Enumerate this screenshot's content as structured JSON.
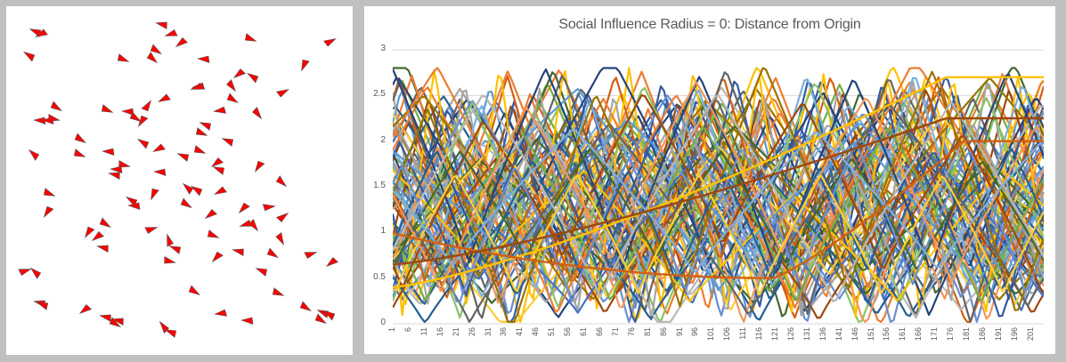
{
  "simulation": {
    "agent_color": "#ff0000",
    "agent_stroke": "#555555",
    "agent_count": 100,
    "agents": [
      [
        40,
        35,
        200
      ],
      [
        46,
        38,
        150
      ],
      [
        33,
        62,
        210
      ],
      [
        182,
        27,
        190
      ],
      [
        192,
        38,
        160
      ],
      [
        203,
        48,
        140
      ],
      [
        175,
        57,
        30
      ],
      [
        281,
        44,
        20
      ],
      [
        371,
        47,
        330
      ],
      [
        138,
        67,
        20
      ],
      [
        229,
        66,
        180
      ],
      [
        171,
        66,
        40
      ],
      [
        341,
        73,
        110
      ],
      [
        268,
        83,
        140
      ],
      [
        284,
        86,
        210
      ],
      [
        223,
        97,
        170
      ],
      [
        221,
        98,
        160
      ],
      [
        260,
        97,
        50
      ],
      [
        318,
        104,
        330
      ],
      [
        45,
        135,
        180
      ],
      [
        63,
        121,
        30
      ],
      [
        60,
        134,
        10
      ],
      [
        120,
        124,
        20
      ],
      [
        144,
        125,
        180
      ],
      [
        159,
        136,
        120
      ],
      [
        166,
        119,
        300
      ],
      [
        184,
        111,
        150
      ],
      [
        247,
        124,
        170
      ],
      [
        261,
        112,
        30
      ],
      [
        289,
        128,
        50
      ],
      [
        226,
        150,
        20
      ],
      [
        231,
        140,
        200
      ],
      [
        54,
        135,
        180
      ],
      [
        90,
        157,
        30
      ],
      [
        89,
        174,
        20
      ],
      [
        122,
        170,
        180
      ],
      [
        38,
        173,
        220
      ],
      [
        161,
        160,
        210
      ],
      [
        178,
        167,
        150
      ],
      [
        206,
        175,
        200
      ],
      [
        131,
        190,
        180
      ],
      [
        139,
        186,
        10
      ],
      [
        129,
        196,
        190
      ],
      [
        180,
        193,
        180
      ],
      [
        224,
        170,
        20
      ],
      [
        243,
        183,
        140
      ],
      [
        246,
        190,
        200
      ],
      [
        290,
        187,
        120
      ],
      [
        256,
        158,
        200
      ],
      [
        316,
        205,
        40
      ],
      [
        55,
        218,
        20
      ],
      [
        53,
        238,
        120
      ],
      [
        99,
        261,
        120
      ],
      [
        109,
        266,
        140
      ],
      [
        118,
        252,
        30
      ],
      [
        148,
        225,
        210
      ],
      [
        151,
        231,
        180
      ],
      [
        116,
        278,
        190
      ],
      [
        172,
        218,
        110
      ],
      [
        211,
        211,
        220
      ],
      [
        221,
        213,
        210
      ],
      [
        247,
        215,
        150
      ],
      [
        273,
        234,
        130
      ],
      [
        302,
        233,
        350
      ],
      [
        318,
        244,
        320
      ],
      [
        170,
        258,
        340
      ],
      [
        190,
        270,
        250
      ],
      [
        197,
        279,
        200
      ],
      [
        209,
        230,
        30
      ],
      [
        236,
        241,
        140
      ],
      [
        239,
        265,
        20
      ],
      [
        276,
        252,
        160
      ],
      [
        285,
        254,
        50
      ],
      [
        315,
        269,
        60
      ],
      [
        349,
        286,
        340
      ],
      [
        372,
        295,
        140
      ],
      [
        28,
        305,
        340
      ],
      [
        40,
        306,
        220
      ],
      [
        190,
        294,
        10
      ],
      [
        243,
        289,
        130
      ],
      [
        268,
        282,
        190
      ],
      [
        306,
        286,
        30
      ],
      [
        294,
        304,
        200
      ],
      [
        312,
        330,
        20
      ],
      [
        218,
        328,
        30
      ],
      [
        45,
        340,
        190
      ],
      [
        48,
        342,
        200
      ],
      [
        95,
        348,
        140
      ],
      [
        119,
        356,
        190
      ],
      [
        133,
        360,
        190
      ],
      [
        129,
        364,
        30
      ],
      [
        184,
        367,
        230
      ],
      [
        192,
        373,
        200
      ],
      [
        248,
        352,
        170
      ],
      [
        278,
        360,
        180
      ],
      [
        343,
        346,
        30
      ],
      [
        363,
        351,
        200
      ],
      [
        360,
        360,
        30
      ],
      [
        370,
        353,
        210
      ],
      [
        152,
        133,
        30
      ]
    ]
  },
  "chart_data": {
    "type": "line",
    "title": "Social Influence Radius = 0: Distance from Origin",
    "xlabel": "",
    "ylabel": "",
    "ylim": [
      0,
      3
    ],
    "y_ticks": [
      "0",
      "0.5",
      "1",
      "1.5",
      "2",
      "2.5",
      "3"
    ],
    "x_range": [
      1,
      205
    ],
    "x_ticks": [
      "1",
      "6",
      "11",
      "16",
      "21",
      "26",
      "31",
      "36",
      "41",
      "46",
      "51",
      "56",
      "61",
      "66",
      "71",
      "76",
      "81",
      "86",
      "91",
      "96",
      "101",
      "106",
      "111",
      "116",
      "121",
      "126",
      "131",
      "136",
      "141",
      "146",
      "151",
      "156",
      "161",
      "166",
      "171",
      "176",
      "181",
      "186",
      "191",
      "196",
      "201"
    ],
    "grid": "horizontal",
    "legend": "none",
    "series_count": 100,
    "series_palette": [
      "#4472c4",
      "#ed7d31",
      "#a5a5a5",
      "#ffc000",
      "#5b9bd5",
      "#70ad47",
      "#264478",
      "#9e480e",
      "#636363",
      "#997300",
      "#255e91",
      "#43682b",
      "#698ed0",
      "#f1975a",
      "#b7b7b7",
      "#ffcd33",
      "#7cafdd",
      "#8cc168",
      "#335aa1",
      "#d26012"
    ],
    "series_note": "100 overlapping agent distance series oscillating roughly between 0 and 2.8; values are procedurally approximated by per-series period/phase/amplitude parameters",
    "series_params": {
      "period_range": [
        20,
        90
      ],
      "min_range": [
        0.0,
        1.2
      ],
      "max_range": [
        1.6,
        2.8
      ],
      "slow_series": [
        {
          "color": "#ffc000",
          "start": 0.4,
          "end": 2.7,
          "note": "slow rising yellow curve"
        },
        {
          "color": "#d26012",
          "start": 1.0,
          "min_at": 120,
          "min": 0.5,
          "end": 2.0,
          "note": "orange U curve"
        },
        {
          "color": "#9e480e",
          "start": 0.65,
          "end": 2.25,
          "note": "brown slow curve"
        }
      ]
    }
  },
  "chart_axis": {
    "y_labels": [
      "3",
      "2.5",
      "2",
      "1.5",
      "1",
      "0.5",
      "0"
    ]
  }
}
